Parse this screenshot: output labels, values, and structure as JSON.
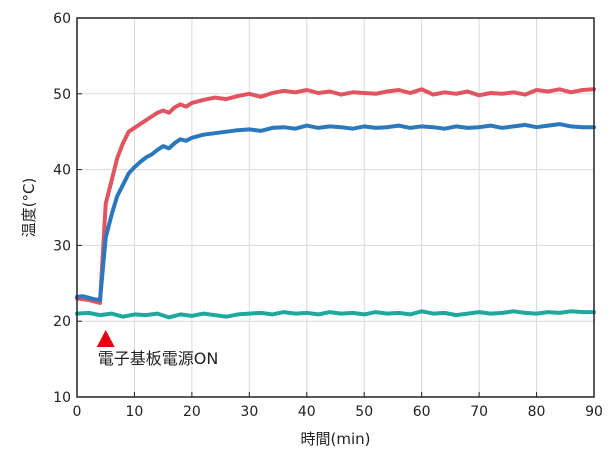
{
  "chart_data": {
    "type": "line",
    "xlabel": "時間(min)",
    "ylabel": "温度(°C)",
    "xlim": [
      0,
      90
    ],
    "ylim": [
      10,
      60
    ],
    "xticks": [
      0,
      10,
      20,
      30,
      40,
      50,
      60,
      70,
      80,
      90
    ],
    "yticks": [
      10,
      20,
      30,
      40,
      50,
      60
    ],
    "grid": true,
    "annotation": {
      "text": "電子基板電源ON",
      "x": 5,
      "color": "#e60012"
    },
    "series": [
      {
        "color": "#e05560",
        "x": [
          0,
          1,
          2,
          3,
          4,
          5,
          6,
          7,
          8,
          9,
          10,
          11,
          12,
          13,
          14,
          15,
          16,
          17,
          18,
          19,
          20,
          22,
          24,
          26,
          28,
          30,
          32,
          34,
          36,
          38,
          40,
          42,
          44,
          46,
          48,
          50,
          52,
          54,
          56,
          58,
          60,
          62,
          64,
          66,
          68,
          70,
          72,
          74,
          76,
          78,
          80,
          82,
          84,
          86,
          88,
          90
        ],
        "y": [
          23,
          22.9,
          22.8,
          22.6,
          22.4,
          35.5,
          38.5,
          41.5,
          43.5,
          45,
          45.5,
          46,
          46.5,
          47,
          47.5,
          47.8,
          47.5,
          48.2,
          48.6,
          48.3,
          48.8,
          49.2,
          49.5,
          49.3,
          49.7,
          50,
          49.6,
          50.1,
          50.4,
          50.2,
          50.5,
          50.1,
          50.3,
          49.9,
          50.2,
          50.1,
          50,
          50.3,
          50.5,
          50.1,
          50.6,
          49.9,
          50.2,
          50,
          50.3,
          49.8,
          50.1,
          50,
          50.2,
          49.9,
          50.5,
          50.3,
          50.6,
          50.2,
          50.5,
          50.6
        ]
      },
      {
        "color": "#2a78be",
        "x": [
          0,
          1,
          2,
          3,
          4,
          5,
          6,
          7,
          8,
          9,
          10,
          11,
          12,
          13,
          14,
          15,
          16,
          17,
          18,
          19,
          20,
          22,
          24,
          26,
          28,
          30,
          32,
          34,
          36,
          38,
          40,
          42,
          44,
          46,
          48,
          50,
          52,
          54,
          56,
          58,
          60,
          62,
          64,
          66,
          68,
          70,
          72,
          74,
          76,
          78,
          80,
          82,
          84,
          86,
          88,
          90
        ],
        "y": [
          23.2,
          23.3,
          23.1,
          22.9,
          22.8,
          31,
          34,
          36.5,
          38,
          39.5,
          40.3,
          41,
          41.6,
          42,
          42.6,
          43.1,
          42.8,
          43.5,
          44,
          43.8,
          44.2,
          44.6,
          44.8,
          45,
          45.2,
          45.3,
          45.1,
          45.5,
          45.6,
          45.4,
          45.8,
          45.5,
          45.7,
          45.6,
          45.4,
          45.7,
          45.5,
          45.6,
          45.8,
          45.5,
          45.7,
          45.6,
          45.4,
          45.7,
          45.5,
          45.6,
          45.8,
          45.5,
          45.7,
          45.9,
          45.6,
          45.8,
          46,
          45.7,
          45.6,
          45.6
        ]
      },
      {
        "color": "#1fa89e",
        "x": [
          0,
          2,
          4,
          6,
          8,
          10,
          12,
          14,
          16,
          18,
          20,
          22,
          24,
          26,
          28,
          30,
          32,
          34,
          36,
          38,
          40,
          42,
          44,
          46,
          48,
          50,
          52,
          54,
          56,
          58,
          60,
          62,
          64,
          66,
          68,
          70,
          72,
          74,
          76,
          78,
          80,
          82,
          84,
          86,
          88,
          90
        ],
        "y": [
          21,
          21.1,
          20.8,
          21,
          20.6,
          20.9,
          20.8,
          21,
          20.5,
          20.9,
          20.7,
          21,
          20.8,
          20.6,
          20.9,
          21,
          21.1,
          20.9,
          21.2,
          21,
          21.1,
          20.9,
          21.2,
          21,
          21.1,
          20.9,
          21.2,
          21,
          21.1,
          20.9,
          21.3,
          21,
          21.1,
          20.8,
          21,
          21.2,
          21,
          21.1,
          21.3,
          21.1,
          21,
          21.2,
          21.1,
          21.3,
          21.2,
          21.2
        ]
      }
    ]
  }
}
